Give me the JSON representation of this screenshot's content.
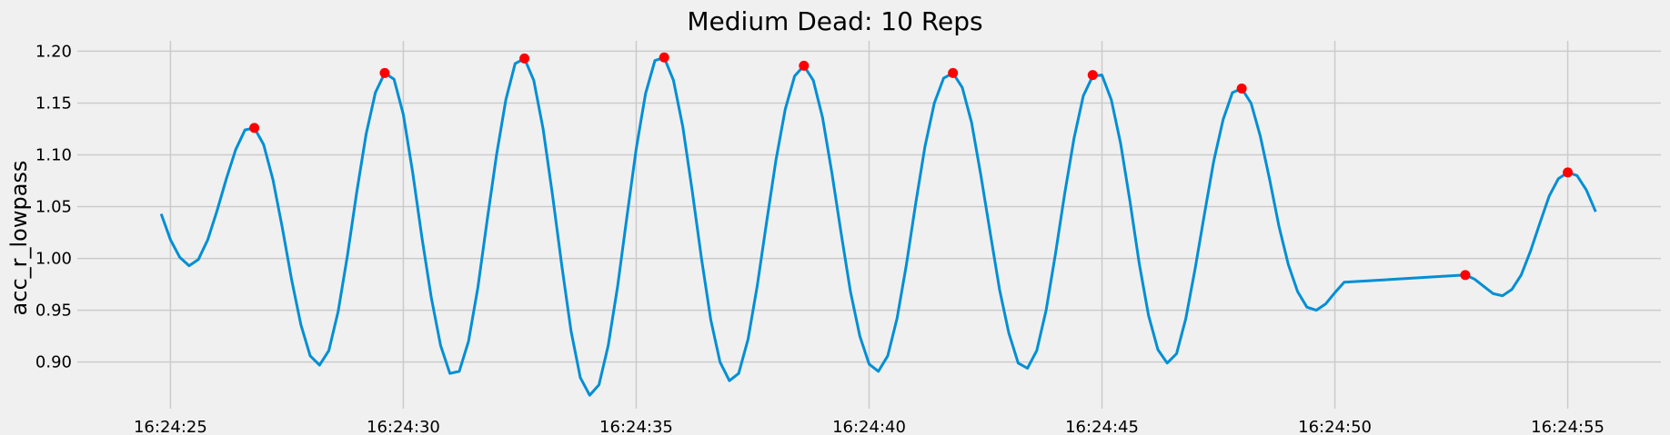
{
  "chart_data": {
    "type": "line",
    "title": "Medium Dead: 10 Reps",
    "xlabel": "",
    "ylabel": "acc_r_lowpass",
    "x_unit": "seconds after 16:24:00",
    "xlim": [
      23.0,
      57.0
    ],
    "ylim": [
      0.855,
      1.21
    ],
    "x_ticks": [
      {
        "value": 25,
        "label": "16:24:25"
      },
      {
        "value": 30,
        "label": "16:24:30"
      },
      {
        "value": 35,
        "label": "16:24:35"
      },
      {
        "value": 40,
        "label": "16:24:40"
      },
      {
        "value": 45,
        "label": "16:24:45"
      },
      {
        "value": 50,
        "label": "16:24:50"
      },
      {
        "value": 55,
        "label": "16:24:55"
      }
    ],
    "y_ticks": [
      {
        "value": 0.9,
        "label": "0.90"
      },
      {
        "value": 0.95,
        "label": "0.95"
      },
      {
        "value": 1.0,
        "label": "1.00"
      },
      {
        "value": 1.05,
        "label": "1.05"
      },
      {
        "value": 1.1,
        "label": "1.10"
      },
      {
        "value": 1.15,
        "label": "1.15"
      },
      {
        "value": 1.2,
        "label": "1.20"
      }
    ],
    "grid": true,
    "colors": {
      "line": "#008fd5",
      "peaks": "#ff0000",
      "grid": "#cbcbcb",
      "background": "#f0f0f0"
    },
    "series": [
      {
        "type": "line",
        "x": [
          24.8,
          25.0,
          25.2,
          25.4,
          25.6,
          25.8,
          26.0,
          26.2,
          26.4,
          26.6,
          26.8,
          27.0,
          27.2,
          27.4,
          27.6,
          27.8,
          28.0,
          28.2,
          28.4,
          28.6,
          28.8,
          29.0,
          29.2,
          29.4,
          29.6,
          29.8,
          30.0,
          30.2,
          30.4,
          30.6,
          30.8,
          31.0,
          31.2,
          31.4,
          31.6,
          31.8,
          32.0,
          32.2,
          32.4,
          32.6,
          32.8,
          33.0,
          33.2,
          33.4,
          33.6,
          33.8,
          34.0,
          34.2,
          34.4,
          34.6,
          34.8,
          35.0,
          35.2,
          35.4,
          35.6,
          35.8,
          36.0,
          36.2,
          36.4,
          36.6,
          36.8,
          37.0,
          37.2,
          37.4,
          37.6,
          37.8,
          38.0,
          38.2,
          38.4,
          38.6,
          38.8,
          39.0,
          39.2,
          39.4,
          39.6,
          39.8,
          40.0,
          40.2,
          40.4,
          40.6,
          40.8,
          41.0,
          41.2,
          41.4,
          41.6,
          41.8,
          42.0,
          42.2,
          42.4,
          42.6,
          42.8,
          43.0,
          43.2,
          43.4,
          43.6,
          43.8,
          44.0,
          44.2,
          44.4,
          44.6,
          44.8,
          45.0,
          45.2,
          45.4,
          45.6,
          45.8,
          46.0,
          46.2,
          46.4,
          46.6,
          46.8,
          47.0,
          47.2,
          47.4,
          47.6,
          47.8,
          48.0,
          48.2,
          48.4,
          48.6,
          48.8,
          49.0,
          49.2,
          49.4,
          49.6,
          49.8,
          50.0,
          50.2,
          52.8,
          53.0,
          53.2,
          53.4,
          53.6,
          53.8,
          54.0,
          54.2,
          54.4,
          54.6,
          54.8,
          55.0,
          55.2,
          55.4,
          55.6
        ],
        "y": [
          1.043,
          1.018,
          1.001,
          0.993,
          0.999,
          1.018,
          1.046,
          1.077,
          1.105,
          1.124,
          1.126,
          1.11,
          1.076,
          1.03,
          0.98,
          0.936,
          0.906,
          0.897,
          0.911,
          0.949,
          1.003,
          1.064,
          1.12,
          1.16,
          1.179,
          1.173,
          1.139,
          1.083,
          1.02,
          0.962,
          0.916,
          0.889,
          0.891,
          0.92,
          0.972,
          1.037,
          1.1,
          1.153,
          1.188,
          1.193,
          1.172,
          1.125,
          1.062,
          0.994,
          0.93,
          0.885,
          0.868,
          0.878,
          0.916,
          0.973,
          1.04,
          1.106,
          1.159,
          1.191,
          1.194,
          1.172,
          1.127,
          1.066,
          1.0,
          0.941,
          0.9,
          0.882,
          0.889,
          0.922,
          0.974,
          1.035,
          1.095,
          1.144,
          1.176,
          1.186,
          1.172,
          1.136,
          1.083,
          1.024,
          0.968,
          0.925,
          0.898,
          0.891,
          0.906,
          0.942,
          0.994,
          1.053,
          1.108,
          1.15,
          1.174,
          1.179,
          1.165,
          1.131,
          1.08,
          1.025,
          0.97,
          0.928,
          0.899,
          0.894,
          0.911,
          0.95,
          1.004,
          1.063,
          1.116,
          1.157,
          1.176,
          1.177,
          1.153,
          1.111,
          1.055,
          0.995,
          0.945,
          0.912,
          0.899,
          0.908,
          0.942,
          0.99,
          1.043,
          1.094,
          1.134,
          1.16,
          1.164,
          1.15,
          1.118,
          1.076,
          1.031,
          0.994,
          0.968,
          0.953,
          0.95,
          0.956,
          0.967,
          0.977,
          0.984,
          0.98,
          0.973,
          0.966,
          0.964,
          0.97,
          0.984,
          1.007,
          1.034,
          1.06,
          1.077,
          1.083,
          1.08,
          1.066,
          1.045
        ]
      },
      {
        "type": "scatter",
        "x": [
          26.8,
          29.6,
          32.6,
          35.6,
          38.6,
          41.8,
          44.8,
          48.0,
          52.8,
          55.0
        ],
        "y": [
          1.126,
          1.179,
          1.193,
          1.194,
          1.186,
          1.179,
          1.177,
          1.164,
          0.984,
          1.083
        ]
      }
    ]
  }
}
